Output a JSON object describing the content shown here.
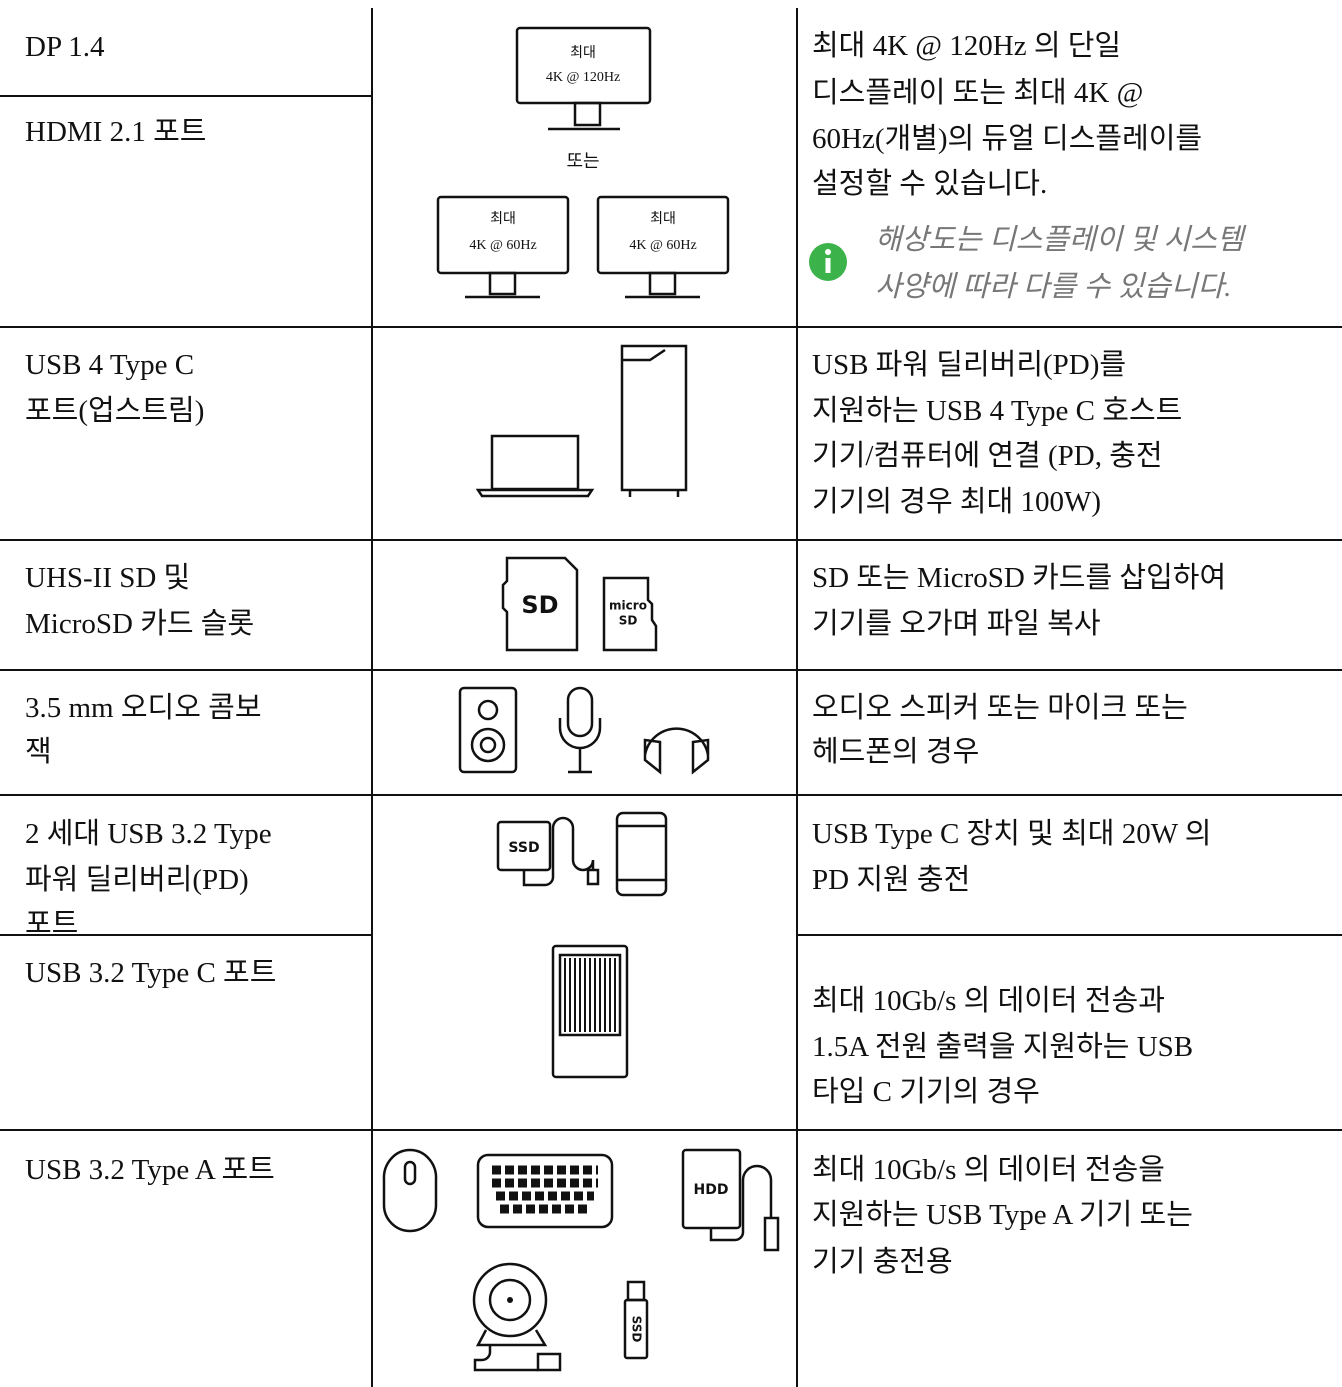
{
  "table": {
    "rows": [
      {
        "ports": [
          [
            "DP 1.4"
          ],
          [
            "HDMI 2.1 포트"
          ]
        ],
        "description": [
          "최대 4K @ 120Hz 의 단일",
          "디스플레이 또는 최대 4K @",
          "60Hz(개별)의 듀얼 디스플레이를",
          "설정할 수 있습니다."
        ],
        "note": [
          "해상도는 디스플레이 및 시스템",
          "사양에 따라 다를 수 있습니다."
        ],
        "figure": {
          "top_monitor": [
            "최대",
            "4K @ 120Hz"
          ],
          "separator": "또는",
          "left_monitor": [
            "최대",
            "4K @ 60Hz"
          ],
          "right_monitor": [
            "최대",
            "4K @ 60Hz"
          ]
        }
      },
      {
        "ports": [
          [
            "USB 4 Type C",
            "포트(업스트림)"
          ]
        ],
        "description": [
          "USB 파워 딜리버리(PD)를",
          "지원하는 USB 4 Type C 호스트",
          "기기/컴퓨터에 연결 (PD, 충전",
          "기기의 경우 최대 100W)"
        ]
      },
      {
        "ports": [
          [
            "UHS-II SD 및",
            "MicroSD 카드 슬롯"
          ]
        ],
        "description": [
          "SD 또는 MicroSD 카드를 삽입하여",
          "기기를 오가며 파일 복사"
        ],
        "figure": {
          "sd": "SD",
          "microsd": [
            "micro",
            "SD"
          ]
        }
      },
      {
        "ports": [
          [
            "3.5 mm 오디오 콤보",
            "잭"
          ]
        ],
        "description": [
          "오디오 스피커 또는 마이크 또는",
          "헤드폰의 경우"
        ]
      },
      {
        "ports": [
          [
            "2 세대 USB 3.2 Type",
            "파워 딜리버리(PD)",
            "포트"
          ]
        ],
        "description": [
          "USB Type C 장치 및 최대 20W 의",
          "PD 지원 충전"
        ],
        "figure": {
          "ssd": "SSD"
        }
      },
      {
        "ports": [
          [
            "USB 3.2 Type C 포트"
          ]
        ],
        "description": [
          "최대 10Gb/s 의 데이터 전송과",
          "1.5A 전원 출력을 지원하는 USB",
          "타입 C 기기의 경우"
        ]
      },
      {
        "ports": [
          [
            "USB 3.2 Type A 포트"
          ]
        ],
        "description": [
          "최대 10Gb/s 의 데이터 전송을",
          "지원하는 USB Type A 기기 또는",
          "기기 충전용"
        ],
        "figure": {
          "hdd": "HDD",
          "ssd": "SSD"
        }
      }
    ]
  }
}
